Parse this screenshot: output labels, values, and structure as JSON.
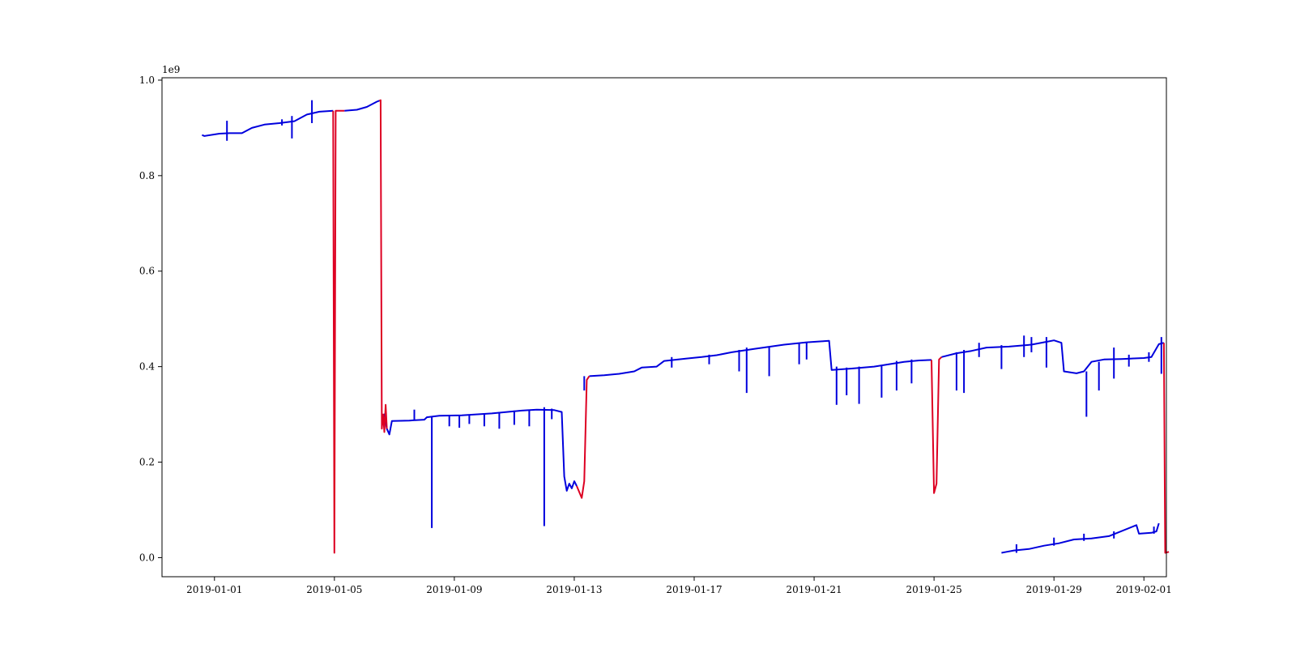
{
  "chart_data": {
    "type": "line",
    "title": "",
    "xlabel": "",
    "ylabel": "",
    "y_offset_label": "1e9",
    "x_type": "date",
    "xlim": [
      "2018-12-30T06:00",
      "2019-02-01T18:00"
    ],
    "ylim": [
      -0.04,
      1.005
    ],
    "x_ticks": [
      {
        "date": "2019-01-01",
        "label": "2019-01-01"
      },
      {
        "date": "2019-01-05",
        "label": "2019-01-05"
      },
      {
        "date": "2019-01-09",
        "label": "2019-01-09"
      },
      {
        "date": "2019-01-13",
        "label": "2019-01-13"
      },
      {
        "date": "2019-01-17",
        "label": "2019-01-17"
      },
      {
        "date": "2019-01-21",
        "label": "2019-01-21"
      },
      {
        "date": "2019-01-25",
        "label": "2019-01-25"
      },
      {
        "date": "2019-01-29",
        "label": "2019-01-29"
      },
      {
        "date": "2019-02-01",
        "label": "2019-02-01"
      }
    ],
    "y_ticks": [
      {
        "value": 0.0,
        "label": "0.0"
      },
      {
        "value": 0.2,
        "label": "0.2"
      },
      {
        "value": 0.4,
        "label": "0.4"
      },
      {
        "value": 0.6,
        "label": "0.6"
      },
      {
        "value": 0.8,
        "label": "0.8"
      },
      {
        "value": 1.0,
        "label": "1.0"
      }
    ],
    "grid": false,
    "series": [
      {
        "color": "#0000dd",
        "segments": [
          [
            [
              "2018-12-31T14:00",
              0.885
            ],
            [
              "2018-12-31T16:00",
              0.883
            ],
            [
              "2019-01-01T04:00",
              0.888
            ],
            [
              "2019-01-01T12:00",
              0.889
            ],
            [
              "2019-01-01T22:00",
              0.889
            ],
            [
              "2019-01-02T06:00",
              0.9
            ],
            [
              "2019-01-02T16:00",
              0.907
            ],
            [
              "2019-01-03T04:00",
              0.91
            ],
            [
              "2019-01-03T16:00",
              0.914
            ],
            [
              "2019-01-04T02:00",
              0.928
            ],
            [
              "2019-01-04T12:00",
              0.934
            ],
            [
              "2019-01-04T23:00",
              0.936
            ]
          ],
          [
            [
              "2019-01-05T08:00",
              0.936
            ],
            [
              "2019-01-05T18:00",
              0.938
            ],
            [
              "2019-01-06T02:00",
              0.944
            ],
            [
              "2019-01-06T10:00",
              0.955
            ],
            [
              "2019-01-06T12:00",
              0.957
            ]
          ],
          [
            [
              "2019-01-06T14:00",
              0.29
            ],
            [
              "2019-01-06T16:00",
              0.3
            ],
            [
              "2019-01-06T18:00",
              0.27
            ],
            [
              "2019-01-06T20:00",
              0.258
            ],
            [
              "2019-01-06T22:00",
              0.286
            ],
            [
              "2019-01-07T12:00",
              0.287
            ],
            [
              "2019-01-08T00:00",
              0.289
            ],
            [
              "2019-01-08T02:00",
              0.294
            ],
            [
              "2019-01-08T12:00",
              0.297
            ],
            [
              "2019-01-09T06:00",
              0.298
            ],
            [
              "2019-01-10T06:00",
              0.302
            ],
            [
              "2019-01-10T18:00",
              0.305
            ],
            [
              "2019-01-11T06:00",
              0.308
            ],
            [
              "2019-01-11T18:00",
              0.31
            ],
            [
              "2019-01-12T08:00",
              0.309
            ],
            [
              "2019-01-12T14:00",
              0.305
            ],
            [
              "2019-01-12T16:00",
              0.17
            ],
            [
              "2019-01-12T18:00",
              0.14
            ],
            [
              "2019-01-12T20:00",
              0.155
            ],
            [
              "2019-01-12T22:00",
              0.145
            ],
            [
              "2019-01-13T00:00",
              0.16
            ],
            [
              "2019-01-13T02:00",
              0.15
            ]
          ],
          [
            [
              "2019-01-13T12:00",
              0.38
            ],
            [
              "2019-01-14T00:00",
              0.382
            ],
            [
              "2019-01-14T12:00",
              0.385
            ],
            [
              "2019-01-15T00:00",
              0.39
            ],
            [
              "2019-01-15T06:00",
              0.398
            ],
            [
              "2019-01-15T18:00",
              0.4
            ],
            [
              "2019-01-16T00:00",
              0.412
            ],
            [
              "2019-01-16T18:00",
              0.417
            ],
            [
              "2019-01-17T06:00",
              0.42
            ],
            [
              "2019-01-17T18:00",
              0.424
            ],
            [
              "2019-01-18T06:00",
              0.43
            ],
            [
              "2019-01-19T00:00",
              0.437
            ],
            [
              "2019-01-20T00:00",
              0.446
            ],
            [
              "2019-01-20T18:00",
              0.451
            ],
            [
              "2019-01-21T06:00",
              0.453
            ],
            [
              "2019-01-21T12:00",
              0.454
            ],
            [
              "2019-01-21T14:00",
              0.393
            ],
            [
              "2019-01-22T06:00",
              0.396
            ],
            [
              "2019-01-23T00:00",
              0.4
            ],
            [
              "2019-01-24T00:00",
              0.41
            ],
            [
              "2019-01-24T12:00",
              0.413
            ],
            [
              "2019-01-24T22:00",
              0.414
            ]
          ],
          [
            [
              "2019-01-25T06:00",
              0.42
            ],
            [
              "2019-01-25T18:00",
              0.428
            ],
            [
              "2019-01-26T06:00",
              0.433
            ],
            [
              "2019-01-26T18:00",
              0.44
            ],
            [
              "2019-01-27T12:00",
              0.442
            ],
            [
              "2019-01-28T06:00",
              0.446
            ],
            [
              "2019-01-28T18:00",
              0.452
            ],
            [
              "2019-01-29T00:00",
              0.455
            ],
            [
              "2019-01-29T06:00",
              0.45
            ],
            [
              "2019-01-29T08:00",
              0.39
            ],
            [
              "2019-01-29T18:00",
              0.386
            ],
            [
              "2019-01-30T00:00",
              0.39
            ],
            [
              "2019-01-30T06:00",
              0.41
            ],
            [
              "2019-01-30T16:00",
              0.415
            ],
            [
              "2019-01-31T06:00",
              0.416
            ],
            [
              "2019-02-01T00:00",
              0.418
            ],
            [
              "2019-02-01T06:00",
              0.42
            ],
            [
              "2019-02-01T12:00",
              0.447
            ],
            [
              "2019-02-01T16:00",
              0.45
            ]
          ],
          [
            [
              "2019-01-27T06:00",
              0.01
            ],
            [
              "2019-01-27T10:00",
              0.012
            ],
            [
              "2019-01-27T16:00",
              0.015
            ],
            [
              "2019-01-28T04:00",
              0.018
            ],
            [
              "2019-01-28T16:00",
              0.025
            ],
            [
              "2019-01-29T04:00",
              0.03
            ],
            [
              "2019-01-29T16:00",
              0.038
            ],
            [
              "2019-01-30T06:00",
              0.04
            ],
            [
              "2019-01-30T20:00",
              0.045
            ],
            [
              "2019-01-31T18:00",
              0.068
            ],
            [
              "2019-01-31T20:00",
              0.05
            ],
            [
              "2019-02-01T06:00",
              0.052
            ],
            [
              "2019-02-01T10:00",
              0.055
            ],
            [
              "2019-02-01T12:00",
              0.072
            ]
          ]
        ],
        "spikes": [
          [
            "2019-01-01T10:00",
            0.873,
            0.915
          ],
          [
            "2019-01-03T06:00",
            0.905,
            0.918
          ],
          [
            "2019-01-03T14:00",
            0.878,
            0.925
          ],
          [
            "2019-01-04T06:00",
            0.91,
            0.958
          ],
          [
            "2019-01-07T16:00",
            0.287,
            0.31
          ],
          [
            "2019-01-08T06:00",
            0.062,
            0.294
          ],
          [
            "2019-01-08T20:00",
            0.275,
            0.298
          ],
          [
            "2019-01-09T04:00",
            0.272,
            0.298
          ],
          [
            "2019-01-09T12:00",
            0.28,
            0.3
          ],
          [
            "2019-01-10T00:00",
            0.275,
            0.302
          ],
          [
            "2019-01-10T12:00",
            0.27,
            0.305
          ],
          [
            "2019-01-11T00:00",
            0.278,
            0.308
          ],
          [
            "2019-01-11T12:00",
            0.275,
            0.31
          ],
          [
            "2019-01-12T00:00",
            0.066,
            0.315
          ],
          [
            "2019-01-12T06:00",
            0.29,
            0.312
          ],
          [
            "2019-01-13T08:00",
            0.35,
            0.38
          ],
          [
            "2019-01-16T06:00",
            0.398,
            0.42
          ],
          [
            "2019-01-17T12:00",
            0.405,
            0.425
          ],
          [
            "2019-01-18T12:00",
            0.39,
            0.435
          ],
          [
            "2019-01-18T18:00",
            0.345,
            0.44
          ],
          [
            "2019-01-19T12:00",
            0.38,
            0.442
          ],
          [
            "2019-01-20T12:00",
            0.405,
            0.448
          ],
          [
            "2019-01-20T18:00",
            0.415,
            0.452
          ],
          [
            "2019-01-21T18:00",
            0.32,
            0.4
          ],
          [
            "2019-01-22T02:00",
            0.34,
            0.398
          ],
          [
            "2019-01-22T12:00",
            0.322,
            0.4
          ],
          [
            "2019-01-23T06:00",
            0.335,
            0.402
          ],
          [
            "2019-01-23T18:00",
            0.35,
            0.412
          ],
          [
            "2019-01-24T06:00",
            0.365,
            0.415
          ],
          [
            "2019-01-25T18:00",
            0.35,
            0.43
          ],
          [
            "2019-01-26T00:00",
            0.345,
            0.435
          ],
          [
            "2019-01-26T12:00",
            0.42,
            0.45
          ],
          [
            "2019-01-27T06:00",
            0.395,
            0.445
          ],
          [
            "2019-01-28T00:00",
            0.42,
            0.465
          ],
          [
            "2019-01-28T06:00",
            0.43,
            0.462
          ],
          [
            "2019-01-28T18:00",
            0.398,
            0.462
          ],
          [
            "2019-01-30T02:00",
            0.295,
            0.39
          ],
          [
            "2019-01-30T12:00",
            0.35,
            0.41
          ],
          [
            "2019-01-31T00:00",
            0.375,
            0.44
          ],
          [
            "2019-01-31T12:00",
            0.4,
            0.425
          ],
          [
            "2019-02-01T04:00",
            0.41,
            0.43
          ],
          [
            "2019-02-01T14:00",
            0.385,
            0.462
          ],
          [
            "2019-01-27T18:00",
            0.01,
            0.028
          ],
          [
            "2019-01-29T00:00",
            0.025,
            0.042
          ],
          [
            "2019-01-30T00:00",
            0.035,
            0.05
          ],
          [
            "2019-01-31T00:00",
            0.04,
            0.055
          ],
          [
            "2019-02-01T08:00",
            0.05,
            0.065
          ]
        ]
      },
      {
        "color": "#dd0022",
        "segments": [
          [
            [
              "2019-01-04T23:00",
              0.936
            ],
            [
              "2019-01-05T00:00",
              0.01
            ],
            [
              "2019-01-05T01:00",
              0.936
            ],
            [
              "2019-01-05T08:00",
              0.936
            ]
          ],
          [
            [
              "2019-01-06T12:00",
              0.957
            ],
            [
              "2019-01-06T13:00",
              0.958
            ],
            [
              "2019-01-06T14:00",
              0.27
            ],
            [
              "2019-01-06T15:00",
              0.3
            ],
            [
              "2019-01-06T16:00",
              0.263
            ],
            [
              "2019-01-06T17:00",
              0.32
            ],
            [
              "2019-01-06T18:00",
              0.27
            ]
          ],
          [
            [
              "2019-01-13T02:00",
              0.15
            ],
            [
              "2019-01-13T06:00",
              0.125
            ],
            [
              "2019-01-13T08:00",
              0.16
            ],
            [
              "2019-01-13T10:00",
              0.372
            ],
            [
              "2019-01-13T12:00",
              0.38
            ]
          ],
          [
            [
              "2019-01-24T22:00",
              0.414
            ],
            [
              "2019-01-25T00:00",
              0.135
            ],
            [
              "2019-01-25T02:00",
              0.155
            ],
            [
              "2019-01-25T04:00",
              0.415
            ],
            [
              "2019-01-25T06:00",
              0.42
            ]
          ],
          [
            [
              "2019-02-01T16:00",
              0.45
            ],
            [
              "2019-02-01T17:00",
              0.01
            ],
            [
              "2019-02-01T20:00",
              0.012
            ]
          ]
        ]
      }
    ]
  }
}
